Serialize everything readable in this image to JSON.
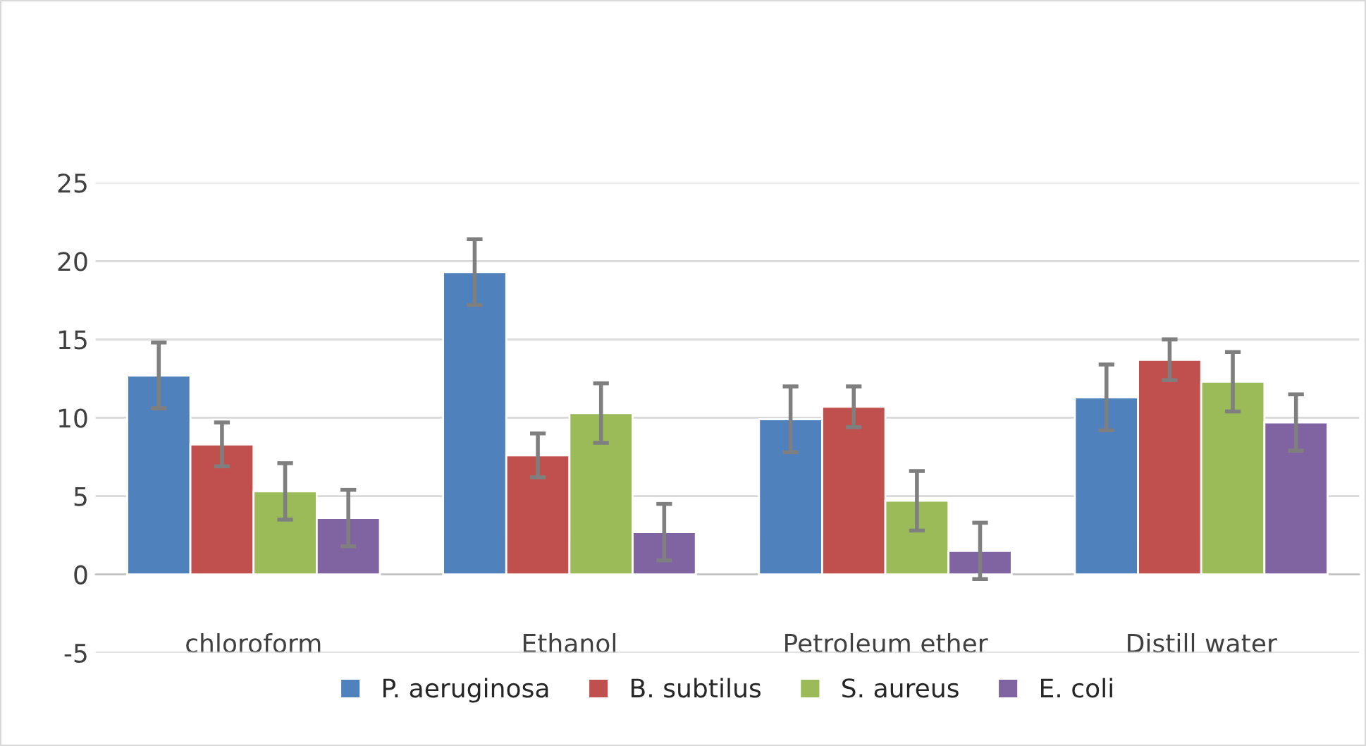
{
  "chart_data": {
    "type": "bar",
    "categories": [
      "chloroform",
      "Ethanol",
      "Petroleum ether",
      "Distill water"
    ],
    "series": [
      {
        "name": "P. aeruginosa",
        "color": "#4f81bd",
        "values": [
          12.7,
          19.3,
          9.9,
          11.3
        ],
        "errors": [
          2.1,
          2.1,
          2.1,
          2.1
        ]
      },
      {
        "name": "B. subtilus",
        "color": "#c0504d",
        "values": [
          8.3,
          7.6,
          10.7,
          13.7
        ],
        "errors": [
          1.4,
          1.4,
          1.3,
          1.3
        ]
      },
      {
        "name": "S. aureus",
        "color": "#9bbb59",
        "values": [
          5.3,
          10.3,
          4.7,
          12.3
        ],
        "errors": [
          1.8,
          1.9,
          1.9,
          1.9
        ]
      },
      {
        "name": "E. coli",
        "color": "#8064a2",
        "values": [
          3.6,
          2.7,
          1.5,
          9.7
        ],
        "errors": [
          1.8,
          1.8,
          1.8,
          1.8
        ]
      }
    ],
    "ylim": [
      -5,
      25
    ],
    "yticks": [
      -5,
      0,
      5,
      10,
      15,
      20,
      25
    ],
    "grid": "y",
    "legend": "bottom"
  }
}
